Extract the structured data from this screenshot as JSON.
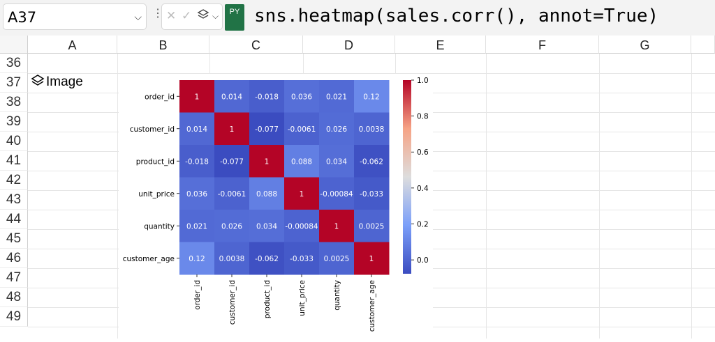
{
  "formula_bar": {
    "name_box": "A37",
    "python_badge": "PY",
    "formula": "sns.heatmap(sales.corr(), annot=True)"
  },
  "columns": [
    "A",
    "B",
    "C",
    "D",
    "E",
    "F",
    "G"
  ],
  "rows": [
    "36",
    "37",
    "38",
    "39",
    "40",
    "41",
    "42",
    "43",
    "44",
    "45",
    "46",
    "47",
    "48",
    "49"
  ],
  "cell_a37": {
    "label": "Image",
    "icon": "layers-icon"
  },
  "chart_data": {
    "type": "heatmap",
    "title": "",
    "xlabel": "",
    "ylabel": "",
    "x": [
      "order_id",
      "customer_id",
      "product_id",
      "unit_price",
      "quantity",
      "customer_age"
    ],
    "y": [
      "order_id",
      "customer_id",
      "product_id",
      "unit_price",
      "quantity",
      "customer_age"
    ],
    "values": [
      [
        1,
        0.014,
        -0.018,
        0.036,
        0.021,
        0.12
      ],
      [
        0.014,
        1,
        -0.077,
        -0.0061,
        0.026,
        0.0038
      ],
      [
        -0.018,
        -0.077,
        1,
        0.088,
        0.034,
        -0.062
      ],
      [
        0.036,
        -0.0061,
        0.088,
        1,
        -0.00084,
        -0.033
      ],
      [
        0.021,
        0.026,
        0.034,
        -0.00084,
        1,
        0.0025
      ],
      [
        0.12,
        0.0038,
        -0.062,
        -0.033,
        0.0025,
        1
      ]
    ],
    "annotations": [
      [
        "1",
        "0.014",
        "-0.018",
        "0.036",
        "0.021",
        "0.12"
      ],
      [
        "0.014",
        "1",
        "-0.077",
        "-0.0061",
        "0.026",
        "0.0038"
      ],
      [
        "-0.018",
        "-0.077",
        "1",
        "0.088",
        "0.034",
        "-0.062"
      ],
      [
        "0.036",
        "-0.0061",
        "0.088",
        "1",
        "-0.00084",
        "-0.033"
      ],
      [
        "0.021",
        "0.026",
        "0.034",
        "-0.00084",
        "1",
        "0.0025"
      ],
      [
        "0.12",
        "0.0038",
        "-0.062",
        "-0.033",
        "0.0025",
        "1"
      ]
    ],
    "colormap": "coolwarm",
    "vmin": -0.077,
    "vmax": 1,
    "colorbar_ticks": [
      "0.0",
      "0.2",
      "0.4",
      "0.6",
      "0.8",
      "1.0"
    ],
    "colorbar_tick_values": [
      0,
      0.2,
      0.4,
      0.6,
      0.8,
      1.0
    ],
    "colorbar_position": "right"
  }
}
